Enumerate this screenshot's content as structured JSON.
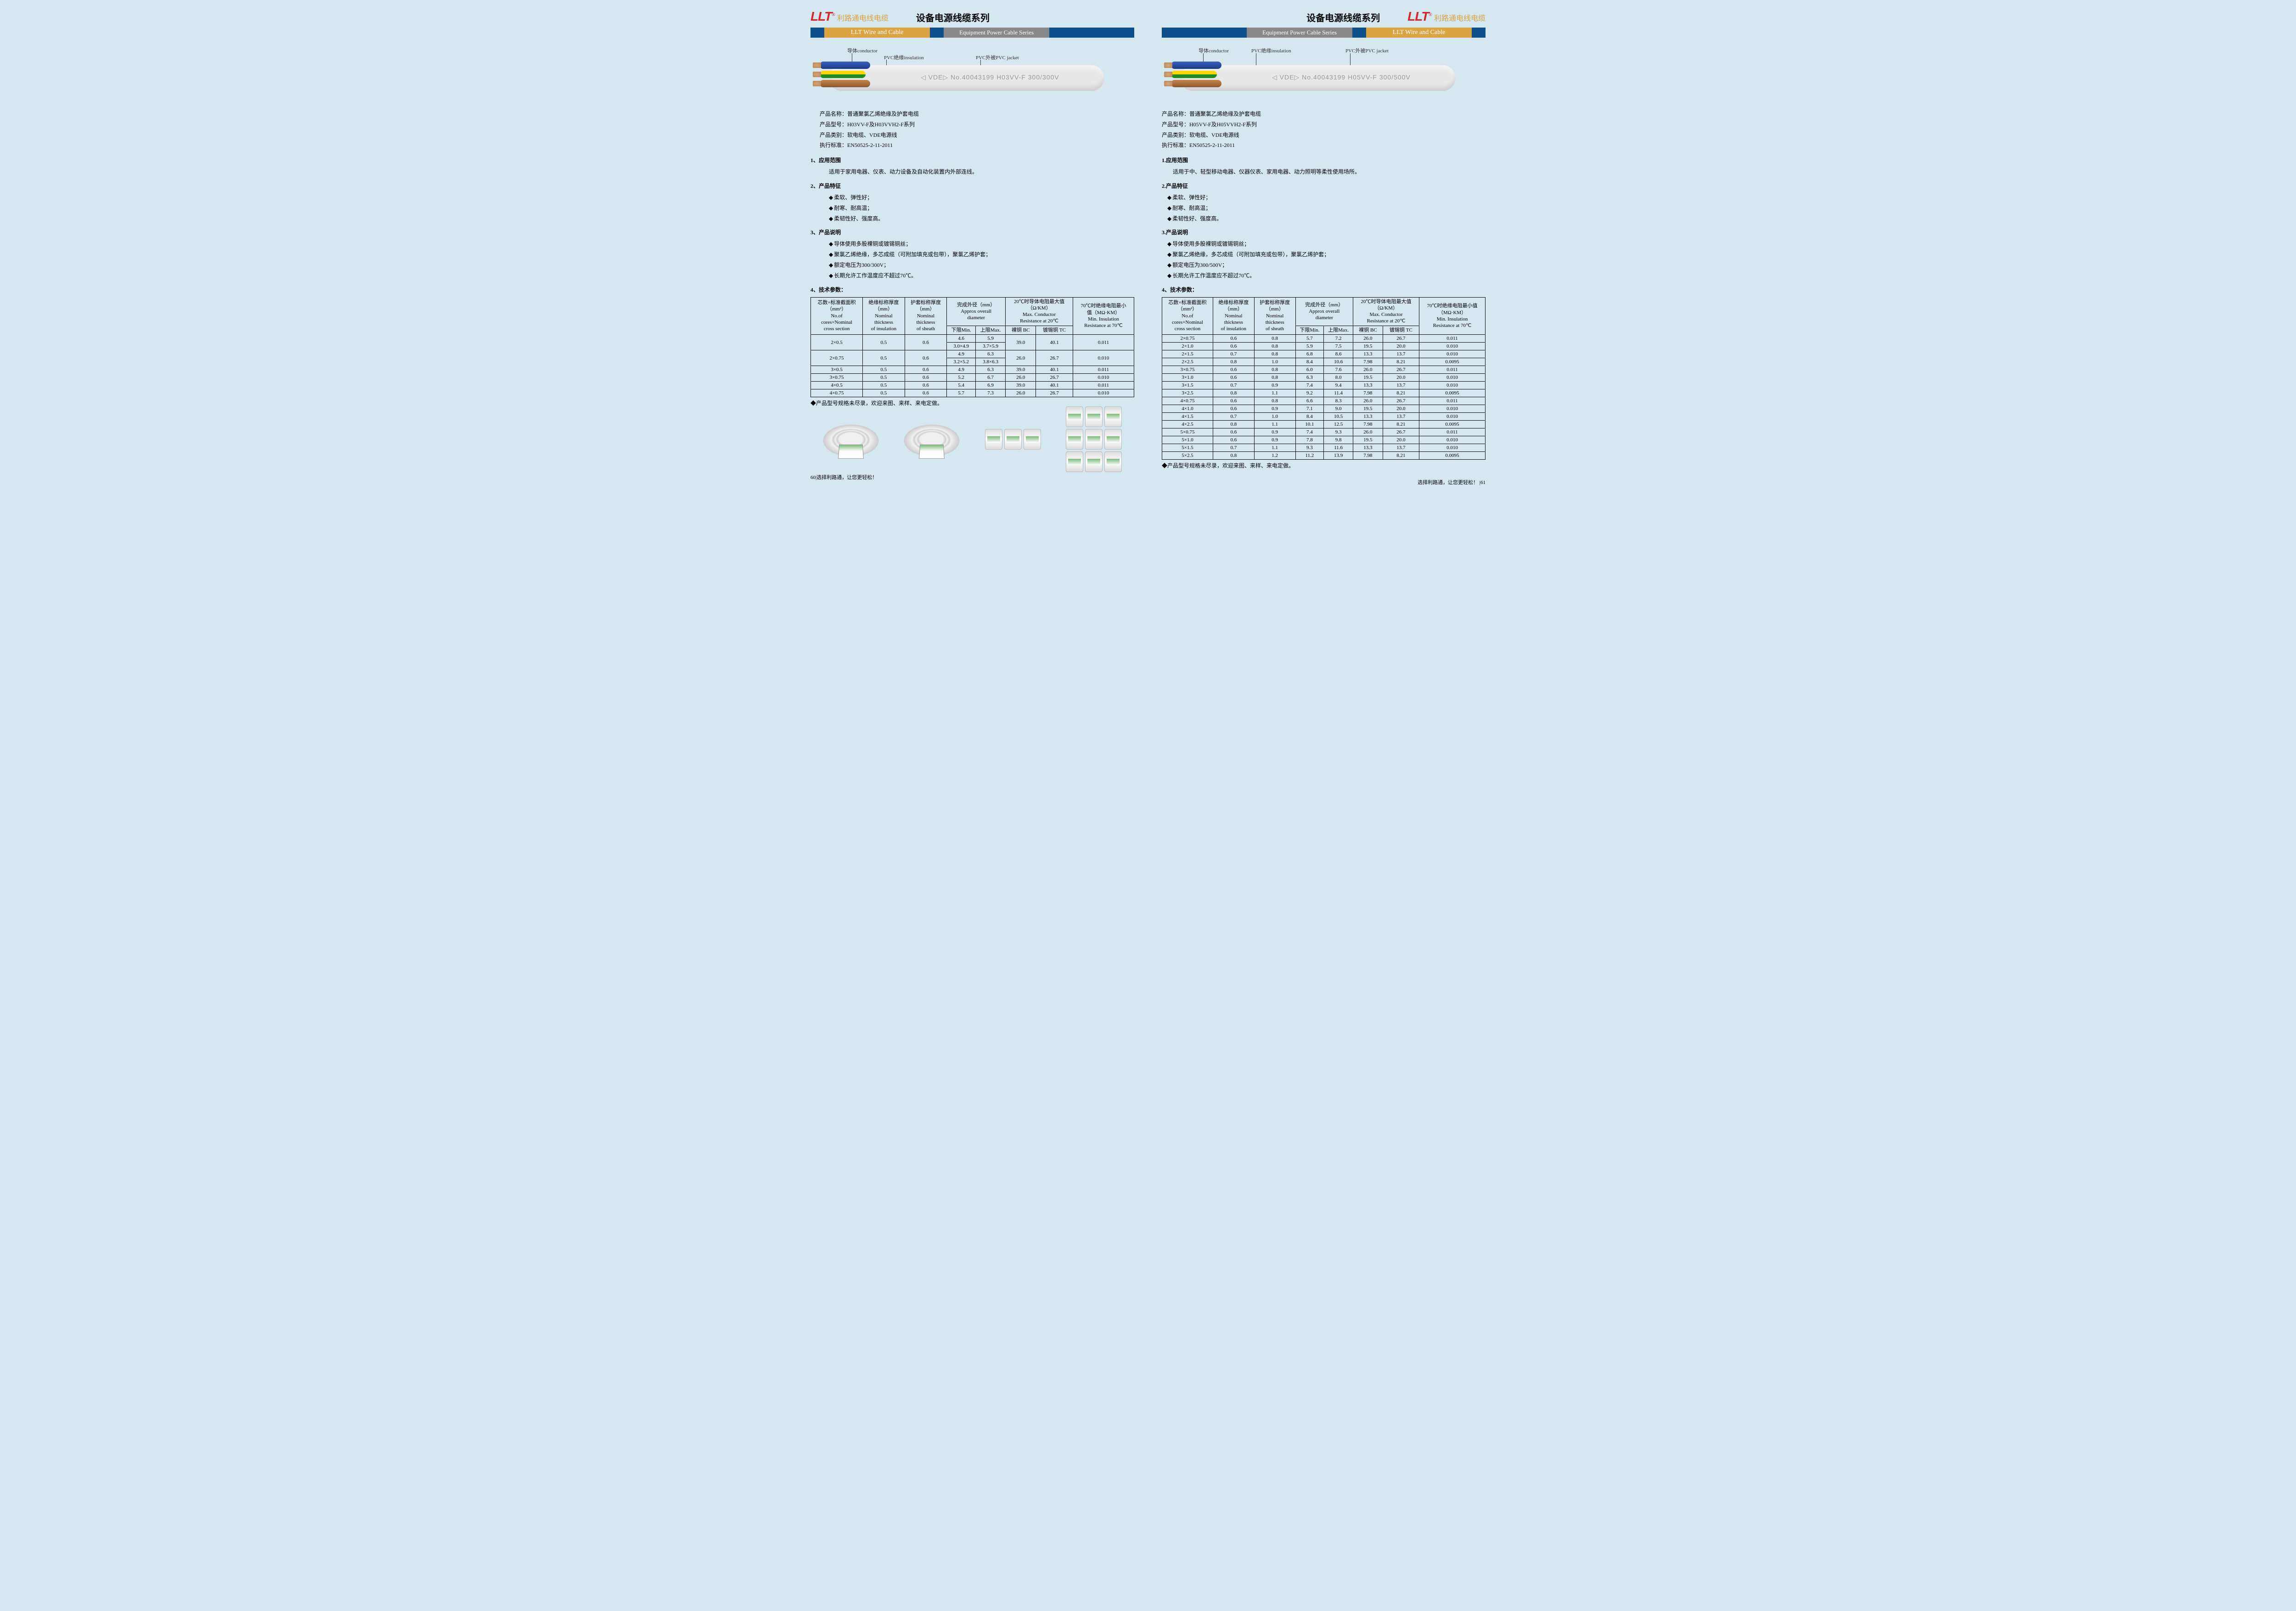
{
  "brand": {
    "logo": "LLT",
    "reg": "®",
    "cn": "利路通电线电缆",
    "en": "LLT Wire and Cable"
  },
  "series": {
    "cn": "设备电源线缆系列",
    "en": "Equipment Power Cable Series"
  },
  "callouts": {
    "conductor": "导体conductor",
    "insulation": "PVC绝缘insulation",
    "jacket": "PVC外被PVC jacket"
  },
  "left": {
    "cable_marking": "◁ VDE▷   No.40043199 H03VV-F 300/300V",
    "info": {
      "name_label": "产品名称：",
      "name": "普通聚氯乙烯绝缘及护套电缆",
      "model_label": "产品型号：",
      "model": "H03VV-F及H03VVH2-F系列",
      "category_label": "产品类别：",
      "category": "软电缆、VDE电源线",
      "standard_label": "执行标准：",
      "standard": "EN50525-2-11-2011"
    },
    "s1_title": "1、应用范围",
    "s1_text": "适用于家用电器、仪表、动力设备及自动化装置内外部连线。",
    "s2_title": "2、产品特征",
    "s2_items": [
      "柔软、弹性好；",
      "耐寒、耐高温；",
      "柔韧性好、强度高。"
    ],
    "s3_title": "3、产品说明",
    "s3_items": [
      "导体使用多股裸铜或镀锡铜丝；",
      "聚氯乙烯绝缘，多芯成缆（可附加填充或包带），聚氯乙烯护套；",
      "额定电压为300/300V；",
      "长期允许工作温度应不超过70℃。"
    ],
    "s4_title": "4、技术参数：",
    "table": {
      "headers": {
        "c1": "芯数×标准截面积\n（mm²）\nNo.of\ncores×Nominal\ncross section",
        "c2": "绝缘标称厚度\n（mm）\nNominal\nthickness\nof insulation",
        "c3": "护套标称厚度\n（mm）\nNominal\nthickness\nof sheath",
        "c4": "完成外径（mm）\nApprox overall\ndiameter",
        "c4a": "下限Min.",
        "c4b": "上限Max.",
        "c5": "20℃时导体电阻最大值\n（Ω/KM）\nMax. Conductor\nResistance at 20℃",
        "c5a": "裸铜 BC",
        "c5b": "镀锡铜 TC",
        "c6": "70℃时绝缘电阻最小\n值（MΩ·KM）\nMin. Insulation\nResistance at 70℃"
      },
      "rows": [
        {
          "size": "2×0.5",
          "ins": "0.5",
          "sh": "0.6",
          "dmin": "4.6",
          "dmax": "5.9",
          "bc": "39.0",
          "tc": "40.1",
          "ir": "0.011",
          "flat_dmin": "3.0×4.9",
          "flat_dmax": "3.7×5.9"
        },
        {
          "size": "2×0.75",
          "ins": "0.5",
          "sh": "0.6",
          "dmin": "4.9",
          "dmax": "6.3",
          "bc": "26.0",
          "tc": "26.7",
          "ir": "0.010",
          "flat_dmin": "3.2×5.2",
          "flat_dmax": "3.8×6.3"
        },
        {
          "size": "3×0.5",
          "ins": "0.5",
          "sh": "0.6",
          "dmin": "4.9",
          "dmax": "6.3",
          "bc": "39.0",
          "tc": "40.1",
          "ir": "0.011"
        },
        {
          "size": "3×0.75",
          "ins": "0.5",
          "sh": "0.6",
          "dmin": "5.2",
          "dmax": "6.7",
          "bc": "26.0",
          "tc": "26.7",
          "ir": "0.010"
        },
        {
          "size": "4×0.5",
          "ins": "0.5",
          "sh": "0.6",
          "dmin": "5.4",
          "dmax": "6.9",
          "bc": "39.0",
          "tc": "40.1",
          "ir": "0.011"
        },
        {
          "size": "4×0.75",
          "ins": "0.5",
          "sh": "0.6",
          "dmin": "5.7",
          "dmax": "7.3",
          "bc": "26.0",
          "tc": "26.7",
          "ir": "0.010"
        }
      ]
    },
    "note": "产品型号规格未尽录，欢迎来图、来样、来电定做。",
    "footer_page": "60",
    "footer_slogan": "选择利路通，让您更轻松！"
  },
  "right": {
    "cable_marking": "◁ VDE▷   No.40043199 H05VV-F 300/500V",
    "info": {
      "name_label": "产品名称：",
      "name": "普通聚氯乙烯绝缘及护套电缆",
      "model_label": "产品型号：",
      "model": "H05VV-F及H05VVH2-F系列",
      "category_label": "产品类别：",
      "category": "软电缆、VDE电源线",
      "standard_label": "执行标准：",
      "standard": "EN50525-2-11-2011"
    },
    "s1_title": "1.应用范围",
    "s1_text": "适用于中、轻型移动电器、仪器仪表、家用电器、动力照明等柔性使用场所。",
    "s2_title": "2.产品特征",
    "s2_items": [
      "柔软、弹性好；",
      "耐寒、耐高温；",
      "柔韧性好、强度高。"
    ],
    "s3_title": "3.产品说明",
    "s3_items": [
      "导体使用多股裸铜或镀锡铜丝；",
      "聚氯乙烯绝缘，多芯成缆（可附加填充或包带），聚氯乙烯护套；",
      "额定电压为300/500V；",
      "长期允许工作温度应不超过70℃。"
    ],
    "s4_title": "4、技术参数：",
    "table": {
      "headers": {
        "c1": "芯数×标准截面积\n（mm²）\nNo.of\ncores×Nominal\ncross section",
        "c2": "绝缘标称厚度\n（mm）\nNominal\nthickness\nof insulation",
        "c3": "护套标称厚度\n（mm）\nNominal\nthickness\nof sheath",
        "c4": "完成外径（mm）\nApprox overall\ndiameter",
        "c4a": "下限Min.",
        "c4b": "上限Max.",
        "c5": "20℃时导体电阻最大值\n（Ω/KM）\nMax. Conductor\nResistance at 20℃",
        "c5a": "裸铜 BC",
        "c5b": "镀锡铜 TC",
        "c6": "70℃时绝缘电阻最小值\n（MΩ·KM）\nMin. Insulation\nResistance at 70℃"
      },
      "rows": [
        {
          "size": "2×0.75",
          "ins": "0.6",
          "sh": "0.8",
          "dmin": "5.7",
          "dmax": "7.2",
          "bc": "26.0",
          "tc": "26.7",
          "ir": "0.011"
        },
        {
          "size": "2×1.0",
          "ins": "0.6",
          "sh": "0.8",
          "dmin": "5.9",
          "dmax": "7.5",
          "bc": "19.5",
          "tc": "20.0",
          "ir": "0.010"
        },
        {
          "size": "2×1.5",
          "ins": "0.7",
          "sh": "0.8",
          "dmin": "6.8",
          "dmax": "8.6",
          "bc": "13.3",
          "tc": "13.7",
          "ir": "0.010"
        },
        {
          "size": "2×2.5",
          "ins": "0.8",
          "sh": "1.0",
          "dmin": "8.4",
          "dmax": "10.6",
          "bc": "7.98",
          "tc": "8.21",
          "ir": "0.0095"
        },
        {
          "size": "3×0.75",
          "ins": "0.6",
          "sh": "0.8",
          "dmin": "6.0",
          "dmax": "7.6",
          "bc": "26.0",
          "tc": "26.7",
          "ir": "0.011"
        },
        {
          "size": "3×1.0",
          "ins": "0.6",
          "sh": "0.8",
          "dmin": "6.3",
          "dmax": "8.0",
          "bc": "19.5",
          "tc": "20.0",
          "ir": "0.010"
        },
        {
          "size": "3×1.5",
          "ins": "0.7",
          "sh": "0.9",
          "dmin": "7.4",
          "dmax": "9.4",
          "bc": "13.3",
          "tc": "13.7",
          "ir": "0.010"
        },
        {
          "size": "3×2.5",
          "ins": "0.8",
          "sh": "1.1",
          "dmin": "9.2",
          "dmax": "11.4",
          "bc": "7.98",
          "tc": "8.21",
          "ir": "0.0095"
        },
        {
          "size": "4×0.75",
          "ins": "0.6",
          "sh": "0.8",
          "dmin": "6.6",
          "dmax": "8.3",
          "bc": "26.0",
          "tc": "26.7",
          "ir": "0.011"
        },
        {
          "size": "4×1.0",
          "ins": "0.6",
          "sh": "0.9",
          "dmin": "7.1",
          "dmax": "9.0",
          "bc": "19.5",
          "tc": "20.0",
          "ir": "0.010"
        },
        {
          "size": "4×1.5",
          "ins": "0.7",
          "sh": "1.0",
          "dmin": "8.4",
          "dmax": "10.5",
          "bc": "13.3",
          "tc": "13.7",
          "ir": "0.010"
        },
        {
          "size": "4×2.5",
          "ins": "0.8",
          "sh": "1.1",
          "dmin": "10.1",
          "dmax": "12.5",
          "bc": "7.98",
          "tc": "8.21",
          "ir": "0.0095"
        },
        {
          "size": "5×0.75",
          "ins": "0.6",
          "sh": "0.9",
          "dmin": "7.4",
          "dmax": "9.3",
          "bc": "26.0",
          "tc": "26.7",
          "ir": "0.011"
        },
        {
          "size": "5×1.0",
          "ins": "0.6",
          "sh": "0.9",
          "dmin": "7.8",
          "dmax": "9.8",
          "bc": "19.5",
          "tc": "20.0",
          "ir": "0.010"
        },
        {
          "size": "5×1.5",
          "ins": "0.7",
          "sh": "1.1",
          "dmin": "9.3",
          "dmax": "11.6",
          "bc": "13.3",
          "tc": "13.7",
          "ir": "0.010"
        },
        {
          "size": "5×2.5",
          "ins": "0.8",
          "sh": "1.2",
          "dmin": "11.2",
          "dmax": "13.9",
          "bc": "7.98",
          "tc": "8.21",
          "ir": "0.0095"
        }
      ]
    },
    "note": "产品型号规格未尽录，欢迎来图、来样、来电定做。",
    "footer_page": "61",
    "footer_slogan": "选择利路通，让您更轻松！"
  }
}
